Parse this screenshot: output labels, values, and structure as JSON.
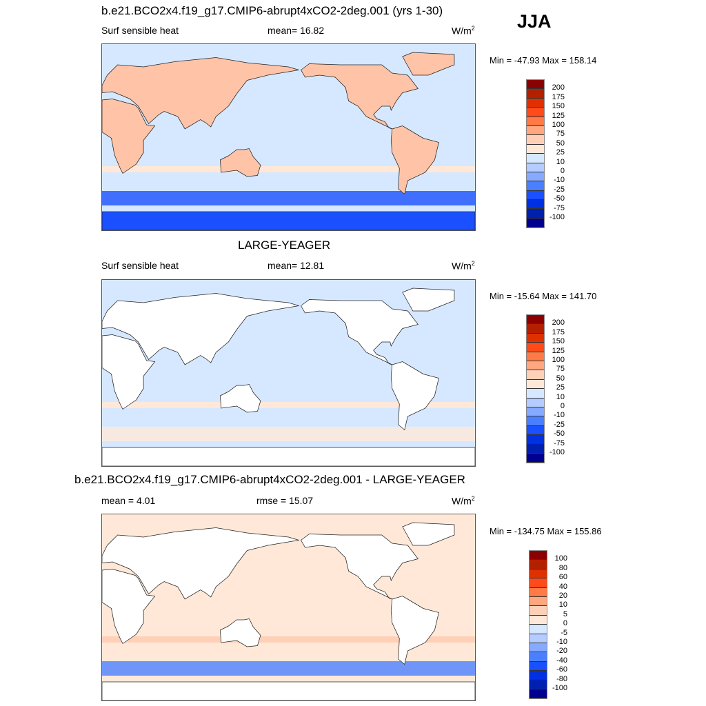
{
  "header": {
    "title": "b.e21.BCO2x4.f19_g17.CMIP6-abrupt4xCO2-2deg.001 (yrs 1-30)",
    "season": "JJA"
  },
  "panels": [
    {
      "title": "",
      "variable": "Surf sensible heat",
      "stat": "mean=  16.82",
      "units": "W/m",
      "units_sup": "2",
      "minmax": "Min = -47.93 Max = 158.14",
      "ocean": "#D6E8FF",
      "land": "#FFC4A8",
      "south_band": "#1A50FF",
      "colorbar": "main"
    },
    {
      "title": "LARGE-YEAGER",
      "variable": "Surf sensible heat",
      "stat": "mean=  12.81",
      "units": "W/m",
      "units_sup": "2",
      "minmax": "Min = -15.64 Max = 141.70",
      "ocean": "#D6E8FF",
      "land": "#FFFFFF",
      "south_band": "#FFE8D8",
      "colorbar": "main"
    },
    {
      "title": "b.e21.BCO2x4.f19_g17.CMIP6-abrupt4xCO2-2deg.001 - LARGE-YEAGER",
      "variable": "mean =   4.01",
      "stat": "rmse =  15.07",
      "units": "W/m",
      "units_sup": "2",
      "minmax": "Min = -134.75 Max = 155.86",
      "ocean": "#FFE8D8",
      "land": "#FFFFFF",
      "south_band": "#4A80FF",
      "colorbar": "diff"
    }
  ],
  "colorbars": {
    "colors": [
      "#8B0000",
      "#B22000",
      "#E03000",
      "#FF4A1A",
      "#FF7A45",
      "#FFA880",
      "#FFD0B8",
      "#FFE8D8",
      "#D6E8FF",
      "#B4CCFF",
      "#86AAFF",
      "#4A80FF",
      "#1A50FF",
      "#0030E0",
      "#0020B0",
      "#000090"
    ],
    "main": [
      "200",
      "175",
      "150",
      "125",
      "100",
      "75",
      "50",
      "25",
      "10",
      "0",
      "-10",
      "-25",
      "-50",
      "-75",
      "-100"
    ],
    "diff": [
      "100",
      "80",
      "60",
      "40",
      "20",
      "10",
      "5",
      "0",
      "-5",
      "-10",
      "-20",
      "-40",
      "-60",
      "-80",
      "-100"
    ]
  }
}
